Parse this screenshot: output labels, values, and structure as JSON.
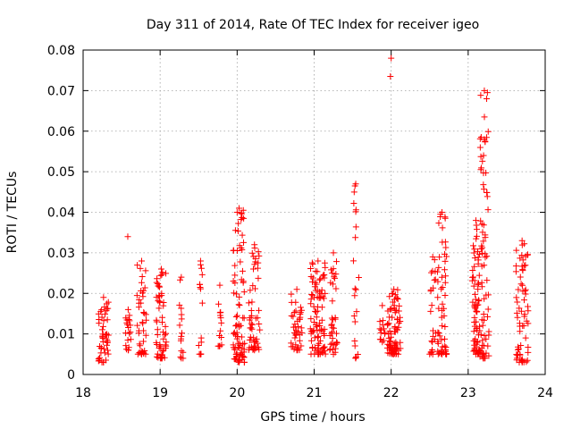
{
  "chart_data": {
    "type": "scatter",
    "title": "Day 311 of 2014, Rate Of TEC Index for receiver igeo",
    "xlabel": "GPS time / hours",
    "ylabel": "ROTI / TECUs",
    "xlim": [
      18,
      24
    ],
    "ylim": [
      0,
      0.08
    ],
    "x_ticks": [
      "18",
      "19",
      "20",
      "21",
      "22",
      "23",
      "24"
    ],
    "y_ticks": [
      "0",
      "0.01",
      "0.02",
      "0.03",
      "0.04",
      "0.05",
      "0.06",
      "0.07",
      "0.08"
    ],
    "grid": true,
    "marker": "+",
    "color": "#ff0000",
    "clusters": [
      {
        "x": [
          18.2,
          18.33
        ],
        "y": [
          0.003,
          0.019
        ],
        "n": 45
      },
      {
        "x": [
          18.55,
          18.62
        ],
        "y": [
          0.006,
          0.016
        ],
        "n": 18
      },
      {
        "x": [
          18.7,
          18.82
        ],
        "y": [
          0.005,
          0.028
        ],
        "n": 40
      },
      {
        "x": [
          18.95,
          19.08
        ],
        "y": [
          0.004,
          0.026
        ],
        "n": 55
      },
      {
        "x": [
          19.25,
          19.3
        ],
        "y": [
          0.004,
          0.024
        ],
        "n": 14
      },
      {
        "x": [
          19.5,
          19.55
        ],
        "y": [
          0.005,
          0.028
        ],
        "n": 14
      },
      {
        "x": [
          19.75,
          19.8
        ],
        "y": [
          0.007,
          0.022
        ],
        "n": 12
      },
      {
        "x": [
          19.95,
          20.1
        ],
        "y": [
          0.003,
          0.041
        ],
        "n": 80
      },
      {
        "x": [
          20.15,
          20.3
        ],
        "y": [
          0.006,
          0.032
        ],
        "n": 50
      },
      {
        "x": [
          20.7,
          20.85
        ],
        "y": [
          0.006,
          0.021
        ],
        "n": 40
      },
      {
        "x": [
          20.95,
          21.15
        ],
        "y": [
          0.005,
          0.028
        ],
        "n": 90
      },
      {
        "x": [
          21.2,
          21.3
        ],
        "y": [
          0.005,
          0.03
        ],
        "n": 35
      },
      {
        "x": [
          21.5,
          21.58
        ],
        "y": [
          0.004,
          0.047
        ],
        "n": 18
      },
      {
        "x": [
          21.85,
          21.92
        ],
        "y": [
          0.008,
          0.017
        ],
        "n": 12
      },
      {
        "x": [
          21.95,
          22.12
        ],
        "y": [
          0.005,
          0.021
        ],
        "n": 80
      },
      {
        "x": [
          22.5,
          22.58
        ],
        "y": [
          0.005,
          0.029
        ],
        "n": 22
      },
      {
        "x": [
          22.6,
          22.72
        ],
        "y": [
          0.005,
          0.04
        ],
        "n": 55
      },
      {
        "x": [
          23.05,
          23.15
        ],
        "y": [
          0.005,
          0.038
        ],
        "n": 70
      },
      {
        "x": [
          23.15,
          23.27
        ],
        "y": [
          0.004,
          0.07
        ],
        "n": 70
      },
      {
        "x": [
          23.62,
          23.78
        ],
        "y": [
          0.003,
          0.033
        ],
        "n": 65
      }
    ],
    "extra_points": [
      {
        "x": 18.58,
        "y": 0.034
      },
      {
        "x": 22.0,
        "y": 0.078
      },
      {
        "x": 21.99,
        "y": 0.0735
      },
      {
        "x": 23.25,
        "y": 0.0695
      },
      {
        "x": 23.24,
        "y": 0.068
      },
      {
        "x": 23.21,
        "y": 0.058
      },
      {
        "x": 23.22,
        "y": 0.0575
      },
      {
        "x": 23.2,
        "y": 0.054
      },
      {
        "x": 21.53,
        "y": 0.0465
      },
      {
        "x": 21.52,
        "y": 0.045
      },
      {
        "x": 20.0,
        "y": 0.04
      },
      {
        "x": 20.08,
        "y": 0.0405
      },
      {
        "x": 22.64,
        "y": 0.0395
      }
    ]
  }
}
